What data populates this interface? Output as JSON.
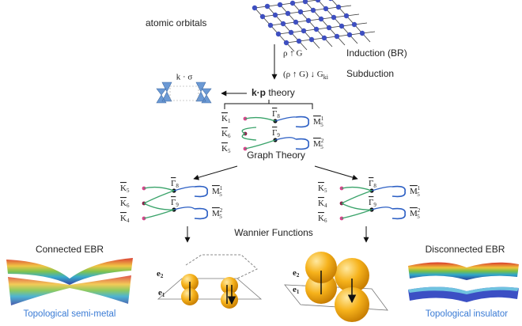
{
  "top": {
    "orbitals": "atomic orbitals",
    "induction_formula": "ρ ↑ G",
    "induction_label": "Induction (BR)",
    "subduction_formula": "(ρ ↑ G) ↓ G",
    "subduction_sub": "ki",
    "subduction_label": "Subduction"
  },
  "kp": {
    "formula": "k · σ",
    "label_bold": "k·p",
    "label_rest": "theory"
  },
  "graphs": [
    {
      "left": [
        {
          "symbol": "K",
          "sub": "1"
        },
        {
          "symbol": "K",
          "sub": "6"
        },
        {
          "symbol": "K",
          "sub": "5"
        }
      ],
      "gamma": [
        {
          "symbol": "Γ",
          "sub": "8"
        },
        {
          "symbol": "Γ",
          "sub": "9"
        }
      ],
      "right": [
        {
          "symbol": "M",
          "sub": "5",
          "sup": "1"
        },
        {
          "symbol": "M",
          "sub": "5",
          "sup": "2"
        }
      ]
    },
    {
      "left": [
        {
          "symbol": "K",
          "sub": "5"
        },
        {
          "symbol": "K",
          "sub": "6"
        },
        {
          "symbol": "K",
          "sub": "4"
        }
      ],
      "gamma": [
        {
          "symbol": "Γ",
          "sub": "8"
        },
        {
          "symbol": "Γ",
          "sub": "9"
        }
      ],
      "right": [
        {
          "symbol": "M",
          "sub": "5",
          "sup": "1"
        },
        {
          "symbol": "M",
          "sub": "5",
          "sup": "2"
        }
      ]
    },
    {
      "left": [
        {
          "symbol": "K",
          "sub": "5"
        },
        {
          "symbol": "K",
          "sub": "4"
        },
        {
          "symbol": "K",
          "sub": "6"
        }
      ],
      "gamma": [
        {
          "symbol": "Γ",
          "sub": "8"
        },
        {
          "symbol": "Γ",
          "sub": "9"
        }
      ],
      "right": [
        {
          "symbol": "M",
          "sub": "5",
          "sup": "1"
        },
        {
          "symbol": "M",
          "sub": "5",
          "sup": "2"
        }
      ]
    }
  ],
  "graph_theory": "Graph Theory",
  "wannier": "Wannier Functions",
  "connected": {
    "title": "Connected EBR",
    "caption": "Topological semi-metal",
    "e2": "e",
    "e2_sub": "2",
    "e1": "e",
    "e1_sub": "1"
  },
  "disconnected": {
    "title": "Disconnected EBR",
    "caption": "Topological insulator",
    "e2": "e",
    "e2_sub": "2",
    "e1": "e",
    "e1_sub": "1"
  }
}
